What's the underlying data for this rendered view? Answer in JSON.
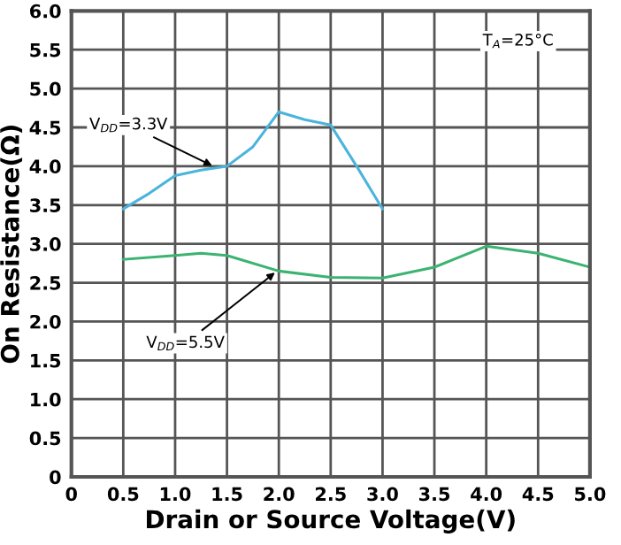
{
  "chart_data": {
    "type": "line",
    "xlabel": "Drain or Source Voltage(V)",
    "ylabel": "On Resistance(Ω)",
    "series": [
      {
        "color": "#4ab4dc",
        "x": [
          0.5,
          0.75,
          1.0,
          1.25,
          1.5,
          1.75,
          2.0,
          2.25,
          2.5,
          2.75,
          3.0
        ],
        "values": [
          3.45,
          3.65,
          3.88,
          3.95,
          4.0,
          4.25,
          4.7,
          4.6,
          4.53,
          4.0,
          3.45
        ]
      },
      {
        "color": "#3cb371",
        "x": [
          0.5,
          1.0,
          1.25,
          1.5,
          2.0,
          2.5,
          3.0,
          3.5,
          4.0,
          4.5,
          5.0
        ],
        "values": [
          2.8,
          2.85,
          2.88,
          2.85,
          2.65,
          2.57,
          2.56,
          2.7,
          2.97,
          2.88,
          2.7
        ]
      }
    ],
    "annotations": [
      {
        "text": "V$_{DD}$=3.3V",
        "x": 1.4,
        "y": 3.98
      },
      {
        "text": "V$_{DD}$=5.5V",
        "x": 2.0,
        "y": 2.67
      },
      "T$_{A}$=25°C"
    ],
    "xlim": [
      0,
      5
    ],
    "ylim": [
      0,
      6
    ],
    "xticks": [
      0,
      0.5,
      {
        "value": 1,
        "label": "1.0"
      },
      1.5,
      {
        "value": 2,
        "label": "2.0"
      },
      2.5,
      {
        "value": 3,
        "label": "3.0"
      },
      3.5,
      {
        "value": 4,
        "label": "4.0"
      },
      4.5,
      {
        "value": 5,
        "label": "5.0"
      }
    ],
    "yticks": [
      0,
      0.5,
      {
        "value": 1,
        "label": "1.0"
      },
      1.5,
      {
        "value": 2,
        "label": "2.0"
      },
      2.5,
      {
        "value": 3,
        "label": "3.0"
      },
      3.5,
      {
        "value": 4,
        "label": "4.0"
      },
      4.5,
      {
        "value": 5,
        "label": "5.0"
      },
      5.5,
      {
        "value": 6,
        "label": "6.0"
      }
    ],
    "grid": true,
    "legend": false,
    "marker": "none",
    "line_style": "solid"
  }
}
